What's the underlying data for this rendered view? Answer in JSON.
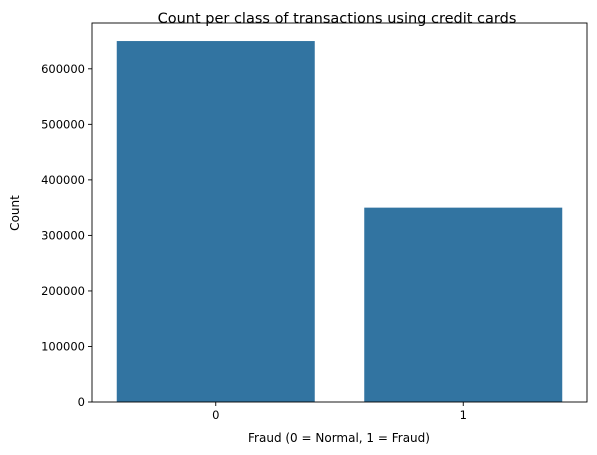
{
  "chart_data": {
    "type": "bar",
    "title": "Count per class of transactions using credit cards",
    "xlabel": "Fraud (0 = Normal, 1 = Fraud)",
    "ylabel": "Count",
    "categories": [
      "0",
      "1"
    ],
    "values": [
      650000,
      350000
    ],
    "yticks": [
      0,
      100000,
      200000,
      300000,
      400000,
      500000,
      600000
    ],
    "ytick_labels": [
      "0",
      "100000",
      "200000",
      "300000",
      "400000",
      "500000",
      "600000"
    ],
    "ylim": [
      0,
      682500
    ],
    "bar_color": "#3274a1",
    "grid": false,
    "legend": "none"
  }
}
